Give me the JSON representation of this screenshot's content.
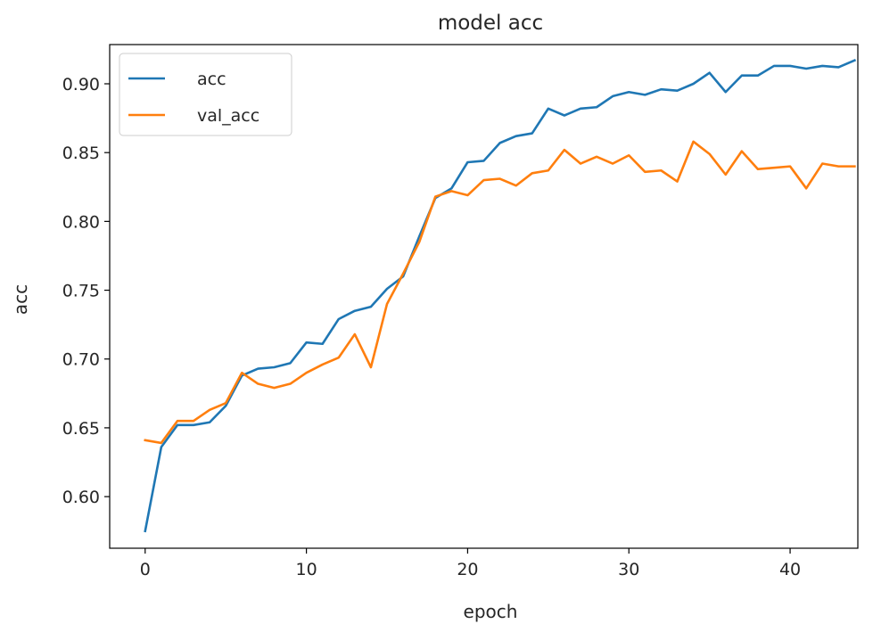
{
  "chart_data": {
    "type": "line",
    "title": "model acc",
    "xlabel": "epoch",
    "ylabel": "acc",
    "xlim": [
      -2.2,
      44.2
    ],
    "ylim": [
      0.5625,
      0.9285
    ],
    "x_ticks": [
      0,
      10,
      20,
      30,
      40
    ],
    "y_ticks": [
      0.6,
      0.65,
      0.7,
      0.75,
      0.8,
      0.85,
      0.9
    ],
    "x_tick_labels": [
      "0",
      "10",
      "20",
      "30",
      "40"
    ],
    "y_tick_labels": [
      "0.60",
      "0.65",
      "0.70",
      "0.75",
      "0.80",
      "0.85",
      "0.90"
    ],
    "grid": false,
    "legend_position": "upper-left",
    "x": [
      0,
      1,
      2,
      3,
      4,
      5,
      6,
      7,
      8,
      9,
      10,
      11,
      12,
      13,
      14,
      15,
      16,
      17,
      18,
      19,
      20,
      21,
      22,
      23,
      24,
      25,
      26,
      27,
      28,
      29,
      30,
      31,
      32,
      33,
      34,
      35,
      36,
      37,
      38,
      39,
      40,
      41,
      42,
      43,
      44
    ],
    "series": [
      {
        "name": "acc",
        "color": "#1f77b4",
        "values": [
          0.575,
          0.636,
          0.652,
          0.652,
          0.654,
          0.666,
          0.688,
          0.693,
          0.694,
          0.697,
          0.712,
          0.711,
          0.729,
          0.735,
          0.738,
          0.751,
          0.76,
          0.789,
          0.817,
          0.824,
          0.843,
          0.844,
          0.857,
          0.862,
          0.864,
          0.882,
          0.877,
          0.882,
          0.883,
          0.891,
          0.894,
          0.892,
          0.896,
          0.895,
          0.9,
          0.908,
          0.894,
          0.906,
          0.906,
          0.913,
          0.913,
          0.911,
          0.913,
          0.912,
          0.917
        ]
      },
      {
        "name": "val_acc",
        "color": "#ff7f0e",
        "values": [
          0.641,
          0.639,
          0.655,
          0.655,
          0.663,
          0.668,
          0.69,
          0.682,
          0.679,
          0.682,
          0.69,
          0.696,
          0.701,
          0.718,
          0.694,
          0.74,
          0.762,
          0.785,
          0.818,
          0.822,
          0.819,
          0.83,
          0.831,
          0.826,
          0.835,
          0.837,
          0.852,
          0.842,
          0.847,
          0.842,
          0.848,
          0.836,
          0.837,
          0.829,
          0.858,
          0.849,
          0.834,
          0.851,
          0.838,
          0.839,
          0.84,
          0.824,
          0.842,
          0.84,
          0.84
        ]
      }
    ]
  }
}
